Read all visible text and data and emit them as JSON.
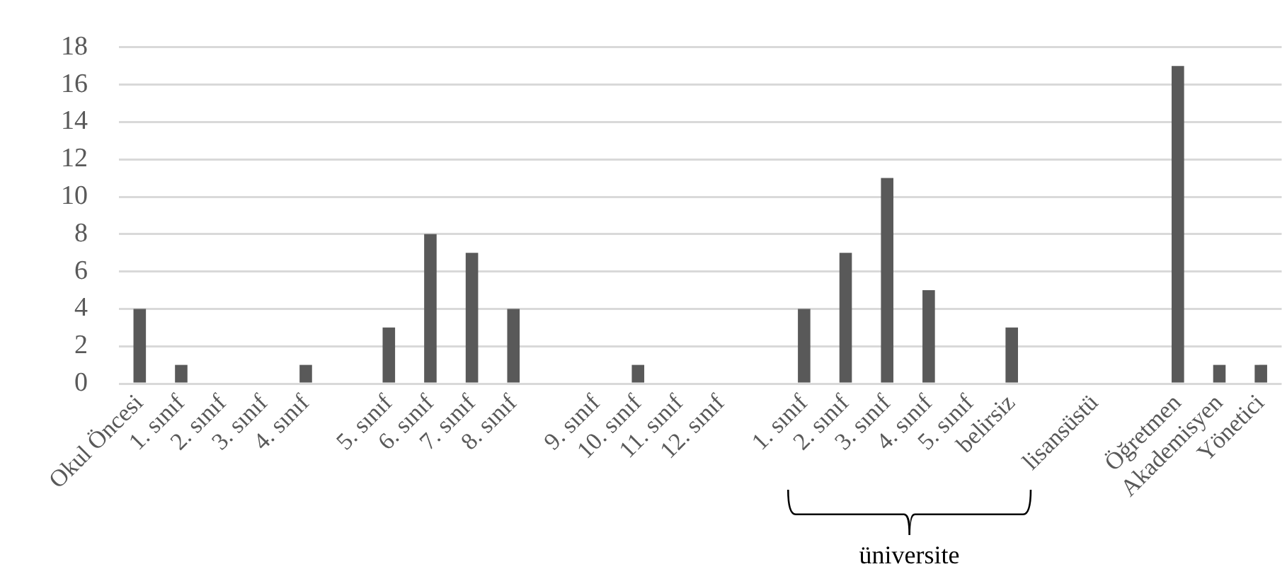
{
  "chart_data": {
    "type": "bar",
    "categories": [
      "Okul Öncesi",
      "1. sınıf",
      "2. sınıf",
      "3. sınıf",
      "4. sınıf",
      null,
      "5. sınıf",
      "6. sınıf",
      "7. sınıf",
      "8. sınıf",
      null,
      "9. sınıf",
      "10. sınıf",
      "11. sınıf",
      "12. sınıf",
      null,
      "1. sınıf",
      "2. sınıf",
      "3. sınıf",
      "4. sınıf",
      "5. sınıf",
      "belirsiz",
      null,
      "lisansüstü",
      null,
      "Öğretmen",
      "Akademisyen",
      "Yönetici"
    ],
    "values": [
      4,
      1,
      0,
      0,
      1,
      null,
      3,
      8,
      7,
      4,
      null,
      0,
      1,
      0,
      0,
      null,
      4,
      7,
      11,
      5,
      0,
      3,
      null,
      0,
      null,
      17,
      1,
      1
    ],
    "color": "#595959",
    "ylim": [
      0,
      18
    ],
    "yticks": [
      0,
      2,
      4,
      6,
      8,
      10,
      12,
      14,
      16,
      18
    ],
    "grid": "y",
    "legend": false,
    "annotations": [
      {
        "text": "üniversite"
      }
    ]
  }
}
